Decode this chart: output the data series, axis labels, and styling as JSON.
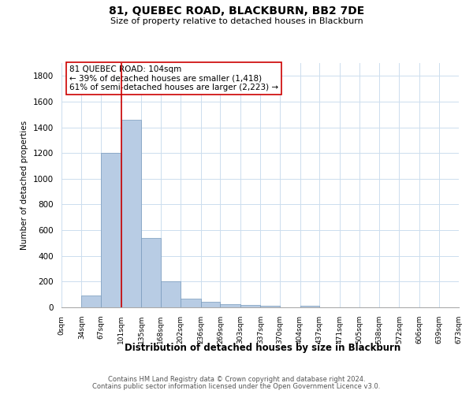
{
  "title": "81, QUEBEC ROAD, BLACKBURN, BB2 7DE",
  "subtitle": "Size of property relative to detached houses in Blackburn",
  "xlabel": "Distribution of detached houses by size in Blackburn",
  "ylabel": "Number of detached properties",
  "bar_color": "#b8cce4",
  "bar_edge_color": "#7799bb",
  "background_color": "#ffffff",
  "grid_color": "#ccddee",
  "annotation_box_edge": "#cc0000",
  "vline_color": "#cc0000",
  "annotation_title": "81 QUEBEC ROAD: 104sqm",
  "annotation_line1": "← 39% of detached houses are smaller (1,418)",
  "annotation_line2": "61% of semi-detached houses are larger (2,223) →",
  "footnote1": "Contains HM Land Registry data © Crown copyright and database right 2024.",
  "footnote2": "Contains public sector information licensed under the Open Government Licence v3.0.",
  "bins": [
    0,
    34,
    67,
    101,
    135,
    168,
    202,
    236,
    269,
    303,
    337,
    370,
    404,
    437,
    471,
    505,
    538,
    572,
    606,
    639,
    673
  ],
  "counts": [
    0,
    90,
    1200,
    1460,
    540,
    200,
    65,
    45,
    25,
    20,
    10,
    0,
    10,
    0,
    0,
    0,
    0,
    0,
    0,
    0
  ],
  "vline_x": 101,
  "ylim": [
    0,
    1900
  ],
  "yticks": [
    0,
    200,
    400,
    600,
    800,
    1000,
    1200,
    1400,
    1600,
    1800
  ]
}
